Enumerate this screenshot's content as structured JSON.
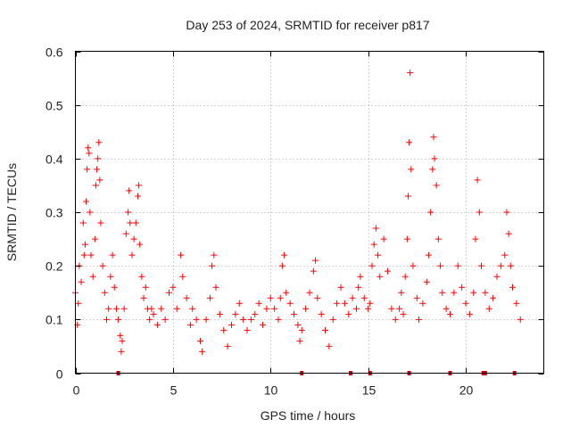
{
  "chart_data": {
    "type": "scatter",
    "title": "Day 253 of 2024, SRMTID for receiver p817",
    "xlabel": "GPS time / hours",
    "ylabel": "SRMTID / TECUs",
    "xlim": [
      0,
      24
    ],
    "ylim": [
      0,
      0.6
    ],
    "xticks": [
      "0",
      "5",
      "10",
      "15",
      "20"
    ],
    "xtick_values": [
      0,
      5,
      10,
      15,
      20
    ],
    "yticks": [
      "0",
      "0.1",
      "0.2",
      "0.3",
      "0.4",
      "0.5",
      "0.6"
    ],
    "ytick_values": [
      0,
      0.1,
      0.2,
      0.3,
      0.4,
      0.5,
      0.6
    ],
    "grid": true,
    "marker": "+",
    "color": "#ff0000",
    "series": [
      {
        "name": "SRMTID",
        "points": [
          [
            0.0,
            0.15
          ],
          [
            0.1,
            0.09
          ],
          [
            0.15,
            0.13
          ],
          [
            0.2,
            0.2
          ],
          [
            0.3,
            0.17
          ],
          [
            0.4,
            0.28
          ],
          [
            0.45,
            0.22
          ],
          [
            0.5,
            0.24
          ],
          [
            0.55,
            0.32
          ],
          [
            0.6,
            0.38
          ],
          [
            0.65,
            0.42
          ],
          [
            0.7,
            0.41
          ],
          [
            0.75,
            0.3
          ],
          [
            0.8,
            0.22
          ],
          [
            0.9,
            0.18
          ],
          [
            1.0,
            0.25
          ],
          [
            1.05,
            0.35
          ],
          [
            1.1,
            0.38
          ],
          [
            1.15,
            0.4
          ],
          [
            1.2,
            0.43
          ],
          [
            1.25,
            0.36
          ],
          [
            1.3,
            0.28
          ],
          [
            1.4,
            0.2
          ],
          [
            1.5,
            0.15
          ],
          [
            1.6,
            0.1
          ],
          [
            1.7,
            0.12
          ],
          [
            1.8,
            0.18
          ],
          [
            1.9,
            0.22
          ],
          [
            2.0,
            0.16
          ],
          [
            2.1,
            0.12
          ],
          [
            2.2,
            0.1
          ],
          [
            2.3,
            0.07
          ],
          [
            2.35,
            0.04
          ],
          [
            2.4,
            0.06
          ],
          [
            2.5,
            0.12
          ],
          [
            2.6,
            0.26
          ],
          [
            2.7,
            0.3
          ],
          [
            2.75,
            0.34
          ],
          [
            2.8,
            0.28
          ],
          [
            2.9,
            0.22
          ],
          [
            3.0,
            0.25
          ],
          [
            3.1,
            0.28
          ],
          [
            3.2,
            0.33
          ],
          [
            3.25,
            0.35
          ],
          [
            3.3,
            0.24
          ],
          [
            3.4,
            0.18
          ],
          [
            3.5,
            0.14
          ],
          [
            3.6,
            0.16
          ],
          [
            3.7,
            0.12
          ],
          [
            3.8,
            0.1
          ],
          [
            3.9,
            0.12
          ],
          [
            4.0,
            0.11
          ],
          [
            4.2,
            0.09
          ],
          [
            4.4,
            0.12
          ],
          [
            4.6,
            0.1
          ],
          [
            4.8,
            0.15
          ],
          [
            5.0,
            0.16
          ],
          [
            5.2,
            0.12
          ],
          [
            5.4,
            0.22
          ],
          [
            5.5,
            0.18
          ],
          [
            5.7,
            0.14
          ],
          [
            5.9,
            0.09
          ],
          [
            6.0,
            0.12
          ],
          [
            6.2,
            0.1
          ],
          [
            6.4,
            0.06
          ],
          [
            6.5,
            0.04
          ],
          [
            6.7,
            0.1
          ],
          [
            6.9,
            0.14
          ],
          [
            7.0,
            0.2
          ],
          [
            7.1,
            0.22
          ],
          [
            7.2,
            0.16
          ],
          [
            7.4,
            0.11
          ],
          [
            7.6,
            0.08
          ],
          [
            7.8,
            0.05
          ],
          [
            8.0,
            0.09
          ],
          [
            8.2,
            0.11
          ],
          [
            8.4,
            0.13
          ],
          [
            8.6,
            0.1
          ],
          [
            8.8,
            0.08
          ],
          [
            9.0,
            0.1
          ],
          [
            9.2,
            0.11
          ],
          [
            9.4,
            0.13
          ],
          [
            9.6,
            0.09
          ],
          [
            9.8,
            0.12
          ],
          [
            10.0,
            0.14
          ],
          [
            10.2,
            0.12
          ],
          [
            10.4,
            0.1
          ],
          [
            10.5,
            0.14
          ],
          [
            10.6,
            0.2
          ],
          [
            10.7,
            0.22
          ],
          [
            10.8,
            0.15
          ],
          [
            11.0,
            0.13
          ],
          [
            11.2,
            0.11
          ],
          [
            11.4,
            0.09
          ],
          [
            11.5,
            0.06
          ],
          [
            11.6,
            0.08
          ],
          [
            11.8,
            0.12
          ],
          [
            12.0,
            0.15
          ],
          [
            12.2,
            0.19
          ],
          [
            12.3,
            0.21
          ],
          [
            12.4,
            0.14
          ],
          [
            12.6,
            0.11
          ],
          [
            12.8,
            0.08
          ],
          [
            13.0,
            0.05
          ],
          [
            13.2,
            0.1
          ],
          [
            13.4,
            0.13
          ],
          [
            13.6,
            0.16
          ],
          [
            13.8,
            0.13
          ],
          [
            14.0,
            0.11
          ],
          [
            14.2,
            0.14
          ],
          [
            14.4,
            0.12
          ],
          [
            14.5,
            0.16
          ],
          [
            14.6,
            0.18
          ],
          [
            14.8,
            0.14
          ],
          [
            15.0,
            0.12
          ],
          [
            15.1,
            0.13
          ],
          [
            15.2,
            0.2
          ],
          [
            15.3,
            0.24
          ],
          [
            15.4,
            0.27
          ],
          [
            15.5,
            0.22
          ],
          [
            15.6,
            0.18
          ],
          [
            15.8,
            0.25
          ],
          [
            16.0,
            0.19
          ],
          [
            16.2,
            0.12
          ],
          [
            16.4,
            0.1
          ],
          [
            16.6,
            0.12
          ],
          [
            16.7,
            0.15
          ],
          [
            16.8,
            0.11
          ],
          [
            16.9,
            0.18
          ],
          [
            17.0,
            0.25
          ],
          [
            17.05,
            0.33
          ],
          [
            17.1,
            0.43
          ],
          [
            17.15,
            0.56
          ],
          [
            17.2,
            0.38
          ],
          [
            17.3,
            0.2
          ],
          [
            17.5,
            0.14
          ],
          [
            17.6,
            0.1
          ],
          [
            17.8,
            0.13
          ],
          [
            18.0,
            0.17
          ],
          [
            18.1,
            0.22
          ],
          [
            18.2,
            0.3
          ],
          [
            18.3,
            0.38
          ],
          [
            18.35,
            0.44
          ],
          [
            18.4,
            0.4
          ],
          [
            18.5,
            0.35
          ],
          [
            18.6,
            0.25
          ],
          [
            18.7,
            0.2
          ],
          [
            18.8,
            0.15
          ],
          [
            19.0,
            0.12
          ],
          [
            19.2,
            0.11
          ],
          [
            19.4,
            0.15
          ],
          [
            19.6,
            0.2
          ],
          [
            19.8,
            0.16
          ],
          [
            20.0,
            0.13
          ],
          [
            20.2,
            0.11
          ],
          [
            20.4,
            0.15
          ],
          [
            20.5,
            0.25
          ],
          [
            20.6,
            0.36
          ],
          [
            20.7,
            0.3
          ],
          [
            20.8,
            0.2
          ],
          [
            21.0,
            0.15
          ],
          [
            21.2,
            0.12
          ],
          [
            21.4,
            0.14
          ],
          [
            21.6,
            0.18
          ],
          [
            21.8,
            0.2
          ],
          [
            22.0,
            0.22
          ],
          [
            22.1,
            0.3
          ],
          [
            22.2,
            0.26
          ],
          [
            22.3,
            0.2
          ],
          [
            22.4,
            0.16
          ],
          [
            22.6,
            0.13
          ],
          [
            22.8,
            0.1
          ]
        ]
      }
    ],
    "bottom_marks": [
      2.2,
      11.6,
      14.1,
      15.1,
      17.1,
      19.2,
      20.9,
      21.0,
      22.5
    ]
  }
}
